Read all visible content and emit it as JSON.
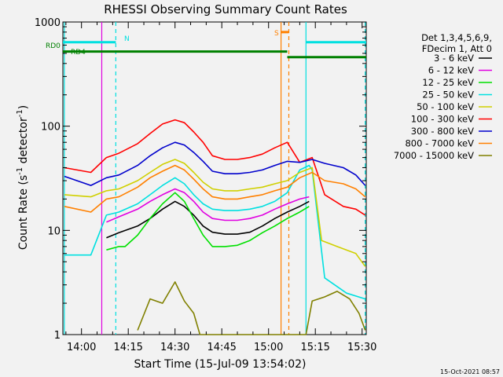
{
  "chart_data": {
    "type": "line",
    "title": "RHESSI Observing Summary Count Rates",
    "xlabel": "Start Time (15-Jul-09 13:54:02)",
    "ylabel_parts": [
      "Count Rate (s",
      "-1",
      " detector",
      "-1",
      ")"
    ],
    "x_ticks": [
      "14:00",
      "14:15",
      "14:30",
      "14:45",
      "15:00",
      "15:15",
      "15:30"
    ],
    "x_tick_minutes": [
      0,
      15,
      30,
      45,
      60,
      75,
      90
    ],
    "x_range_minutes": [
      -5.97,
      91.33
    ],
    "y_scale": "log",
    "y_ticks": [
      "1",
      "10",
      "100",
      "1000"
    ],
    "y_tick_values": [
      1,
      10,
      100,
      1000
    ],
    "y_range": [
      1,
      1000
    ],
    "legend_header": [
      "Det 1,3,4,5,6,9,",
      "FDecim 1, Att 0"
    ],
    "legend_position": "right",
    "timestamp": "15-Oct-2021 08:57",
    "series": [
      {
        "name": "3 - 6 keV",
        "color": "#000000",
        "points": [
          [
            8,
            8.5
          ],
          [
            12,
            9.5
          ],
          [
            18,
            11
          ],
          [
            22,
            13
          ],
          [
            26,
            16
          ],
          [
            30,
            19
          ],
          [
            33,
            17
          ],
          [
            36,
            14
          ],
          [
            39,
            11
          ],
          [
            42,
            9.6
          ],
          [
            46,
            9.2
          ],
          [
            50,
            9.2
          ],
          [
            54,
            9.6
          ],
          [
            58,
            11
          ],
          [
            62,
            13
          ],
          [
            66,
            15
          ],
          [
            70,
            17
          ],
          [
            73,
            19
          ]
        ]
      },
      {
        "name": "6 - 12 keV",
        "color": "#e000e0",
        "points": [
          [
            8,
            12
          ],
          [
            12,
            13.5
          ],
          [
            18,
            16
          ],
          [
            22,
            19
          ],
          [
            26,
            22
          ],
          [
            30,
            25
          ],
          [
            33,
            23
          ],
          [
            36,
            19
          ],
          [
            39,
            15
          ],
          [
            42,
            13
          ],
          [
            46,
            12.5
          ],
          [
            50,
            12.5
          ],
          [
            54,
            13
          ],
          [
            58,
            14
          ],
          [
            62,
            16
          ],
          [
            66,
            18
          ],
          [
            70,
            20
          ],
          [
            73,
            21
          ]
        ]
      },
      {
        "name": "12 - 25 keV",
        "color": "#00e000",
        "points": [
          [
            8,
            6.5
          ],
          [
            12,
            7
          ],
          [
            14,
            7
          ],
          [
            18,
            9
          ],
          [
            22,
            13
          ],
          [
            26,
            18
          ],
          [
            30,
            23
          ],
          [
            33,
            19
          ],
          [
            36,
            13
          ],
          [
            39,
            9
          ],
          [
            42,
            7
          ],
          [
            46,
            7
          ],
          [
            50,
            7.2
          ],
          [
            54,
            8
          ],
          [
            58,
            9.5
          ],
          [
            62,
            11
          ],
          [
            66,
            13
          ],
          [
            70,
            15
          ],
          [
            73,
            17
          ]
        ]
      },
      {
        "name": "25 - 50 keV",
        "color": "#00e0e0",
        "points": [
          [
            -5.5,
            5.8
          ],
          [
            3,
            5.8
          ],
          [
            8,
            14
          ],
          [
            12,
            15
          ],
          [
            18,
            18
          ],
          [
            22,
            22
          ],
          [
            26,
            27
          ],
          [
            30,
            32
          ],
          [
            33,
            28
          ],
          [
            36,
            22
          ],
          [
            39,
            18
          ],
          [
            42,
            16
          ],
          [
            46,
            15.5
          ],
          [
            50,
            15.5
          ],
          [
            54,
            16
          ],
          [
            58,
            17
          ],
          [
            62,
            19
          ],
          [
            66,
            23
          ],
          [
            70,
            38
          ],
          [
            73,
            42
          ],
          [
            74,
            38
          ],
          [
            78,
            3.5
          ],
          [
            85,
            2.5
          ],
          [
            91,
            2.2
          ]
        ]
      },
      {
        "name": "50 - 100 keV",
        "color": "#d0d000",
        "points": [
          [
            -5.5,
            22
          ],
          [
            3,
            21
          ],
          [
            8,
            24
          ],
          [
            12,
            25
          ],
          [
            18,
            30
          ],
          [
            22,
            36
          ],
          [
            26,
            43
          ],
          [
            30,
            48
          ],
          [
            33,
            44
          ],
          [
            36,
            36
          ],
          [
            39,
            29
          ],
          [
            42,
            25
          ],
          [
            46,
            24
          ],
          [
            50,
            24
          ],
          [
            54,
            25
          ],
          [
            58,
            26
          ],
          [
            62,
            28
          ],
          [
            66,
            30
          ],
          [
            70,
            36
          ],
          [
            74,
            40
          ],
          [
            77,
            8
          ],
          [
            82,
            7
          ],
          [
            88,
            6
          ],
          [
            91,
            4.5
          ]
        ]
      },
      {
        "name": "100 - 300 keV",
        "color": "#ff0000",
        "points": [
          [
            -5.5,
            40
          ],
          [
            3,
            36
          ],
          [
            8,
            50
          ],
          [
            12,
            55
          ],
          [
            18,
            68
          ],
          [
            22,
            85
          ],
          [
            26,
            105
          ],
          [
            30,
            115
          ],
          [
            33,
            108
          ],
          [
            36,
            88
          ],
          [
            39,
            70
          ],
          [
            42,
            52
          ],
          [
            46,
            48
          ],
          [
            50,
            48
          ],
          [
            54,
            50
          ],
          [
            58,
            54
          ],
          [
            62,
            62
          ],
          [
            66,
            70
          ],
          [
            70,
            45
          ],
          [
            74,
            50
          ],
          [
            78,
            22
          ],
          [
            84,
            17
          ],
          [
            88,
            16
          ],
          [
            91,
            14
          ]
        ]
      },
      {
        "name": "300 - 800 keV",
        "color": "#0000cc",
        "points": [
          [
            -5.5,
            33
          ],
          [
            3,
            27
          ],
          [
            8,
            32
          ],
          [
            12,
            34
          ],
          [
            18,
            42
          ],
          [
            22,
            52
          ],
          [
            26,
            62
          ],
          [
            30,
            70
          ],
          [
            33,
            66
          ],
          [
            36,
            56
          ],
          [
            39,
            46
          ],
          [
            42,
            37
          ],
          [
            46,
            35
          ],
          [
            50,
            35
          ],
          [
            54,
            36
          ],
          [
            58,
            38
          ],
          [
            62,
            42
          ],
          [
            66,
            46
          ],
          [
            70,
            45
          ],
          [
            74,
            48
          ],
          [
            78,
            44
          ],
          [
            84,
            40
          ],
          [
            88,
            34
          ],
          [
            91,
            27
          ]
        ]
      },
      {
        "name": "800 - 7000 keV",
        "color": "#ff8000",
        "points": [
          [
            -5.5,
            17
          ],
          [
            3,
            15
          ],
          [
            8,
            20
          ],
          [
            12,
            21
          ],
          [
            18,
            26
          ],
          [
            22,
            32
          ],
          [
            26,
            37
          ],
          [
            30,
            42
          ],
          [
            33,
            38
          ],
          [
            36,
            31
          ],
          [
            39,
            25
          ],
          [
            42,
            21
          ],
          [
            46,
            20
          ],
          [
            50,
            20
          ],
          [
            54,
            21
          ],
          [
            58,
            22
          ],
          [
            62,
            24
          ],
          [
            66,
            26
          ],
          [
            70,
            32
          ],
          [
            74,
            36
          ],
          [
            78,
            30
          ],
          [
            84,
            28
          ],
          [
            88,
            25
          ],
          [
            91,
            21
          ]
        ]
      },
      {
        "name": "7000 - 15000 keV",
        "color": "#808000",
        "points": [
          [
            18,
            1.1
          ],
          [
            22,
            2.2
          ],
          [
            26,
            2.0
          ],
          [
            30,
            3.2
          ],
          [
            33,
            2.1
          ],
          [
            36,
            1.6
          ],
          [
            38,
            1.0
          ],
          [
            72,
            1.0
          ],
          [
            74,
            2.1
          ],
          [
            78,
            2.3
          ],
          [
            82,
            2.6
          ],
          [
            86,
            2.2
          ],
          [
            89,
            1.6
          ],
          [
            91,
            1.1
          ]
        ]
      }
    ],
    "flags": [
      {
        "label": "RD0",
        "color": "#008000",
        "segments": [
          {
            "x0": -5.97,
            "x1": 66,
            "y": 520
          },
          {
            "x0": 66,
            "x1": 91.33,
            "y": 460
          }
        ]
      },
      {
        "label": "RD4",
        "color": "#008000"
      },
      {
        "label": "N",
        "color": "#00e0e0",
        "segments": [
          {
            "x0": -5.97,
            "x1": 11,
            "y": 640
          },
          {
            "x0": 72,
            "x1": 91.33,
            "y": 640
          }
        ]
      },
      {
        "label": "S",
        "color": "#ff8000",
        "segments": [
          {
            "x0": 64,
            "x1": 66.5,
            "y": 800
          }
        ]
      }
    ],
    "vlines": [
      {
        "x": -5.5,
        "color": "#00e0e0",
        "style": "solid"
      },
      {
        "x": 11,
        "color": "#00e0e0",
        "style": "dashed"
      },
      {
        "x": 72,
        "color": "#00e0e0",
        "style": "solid"
      },
      {
        "x": 91,
        "color": "#00e0e0",
        "style": "dashed"
      },
      {
        "x": 64,
        "color": "#ff8000",
        "style": "solid"
      },
      {
        "x": 66.5,
        "color": "#ff8000",
        "style": "dashed"
      },
      {
        "x": 6.5,
        "color": "#e000e0",
        "style": "solid"
      }
    ]
  }
}
